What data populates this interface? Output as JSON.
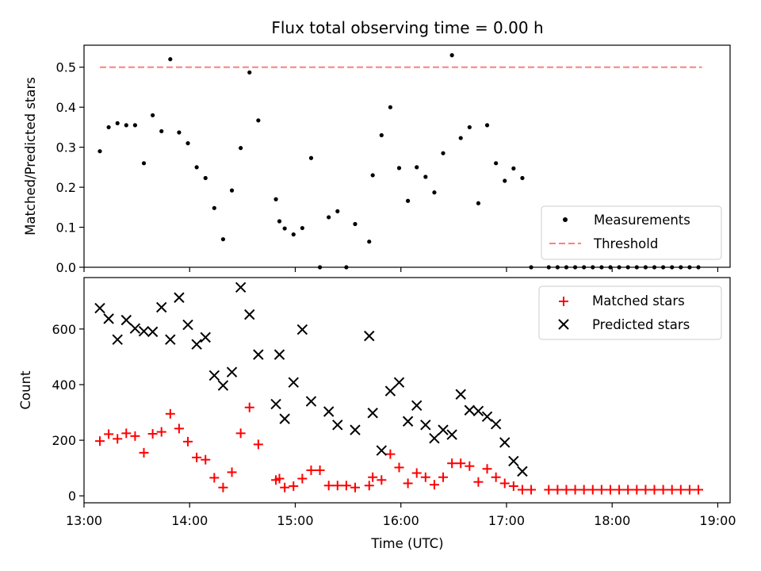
{
  "chart_data": [
    {
      "type": "scatter",
      "title": "Flux total observing time = 0.00 h",
      "xlabel": "",
      "ylabel": "Matched/Predicted stars",
      "ylim": [
        0,
        0.555
      ],
      "xlim": [
        "13:00",
        "19:07"
      ],
      "yticks": [
        "0.0",
        "0.1",
        "0.2",
        "0.3",
        "0.4",
        "0.5"
      ],
      "grid": false,
      "legend_position": "lower-right",
      "legend": [
        "Measurements",
        "Threshold"
      ],
      "series": [
        {
          "name": "Measurements",
          "marker": "dot",
          "color": "#000000",
          "points": [
            [
              "13:09",
              0.29
            ],
            [
              "13:14",
              0.35
            ],
            [
              "13:19",
              0.36
            ],
            [
              "13:24",
              0.355
            ],
            [
              "13:29",
              0.355
            ],
            [
              "13:34",
              0.26
            ],
            [
              "13:39",
              0.38
            ],
            [
              "13:44",
              0.34
            ],
            [
              "13:49",
              0.52
            ],
            [
              "13:54",
              0.337
            ],
            [
              "13:59",
              0.31
            ],
            [
              "14:04",
              0.25
            ],
            [
              "14:09",
              0.223
            ],
            [
              "14:14",
              0.148
            ],
            [
              "14:19",
              0.07
            ],
            [
              "14:24",
              0.192
            ],
            [
              "14:29",
              0.298
            ],
            [
              "14:34",
              0.487
            ],
            [
              "14:39",
              0.367
            ],
            [
              "14:49",
              0.17
            ],
            [
              "14:51",
              0.115
            ],
            [
              "14:54",
              0.097
            ],
            [
              "14:59",
              0.082
            ],
            [
              "15:04",
              0.098
            ],
            [
              "15:09",
              0.273
            ],
            [
              "15:14",
              0.0
            ],
            [
              "15:19",
              0.125
            ],
            [
              "15:24",
              0.14
            ],
            [
              "15:29",
              0.0
            ],
            [
              "15:34",
              0.108
            ],
            [
              "15:42",
              0.064
            ],
            [
              "15:44",
              0.23
            ],
            [
              "15:49",
              0.33
            ],
            [
              "15:54",
              0.4
            ],
            [
              "15:59",
              0.248
            ],
            [
              "16:04",
              0.166
            ],
            [
              "16:09",
              0.25
            ],
            [
              "16:14",
              0.226
            ],
            [
              "16:19",
              0.187
            ],
            [
              "16:24",
              0.285
            ],
            [
              "16:29",
              0.53
            ],
            [
              "16:34",
              0.323
            ],
            [
              "16:39",
              0.35
            ],
            [
              "16:44",
              0.16
            ],
            [
              "16:49",
              0.355
            ],
            [
              "16:54",
              0.26
            ],
            [
              "16:59",
              0.216
            ],
            [
              "17:04",
              0.247
            ],
            [
              "17:09",
              0.223
            ],
            [
              "17:14",
              0.0
            ],
            [
              "17:24",
              0.0
            ],
            [
              "17:29",
              0.0
            ],
            [
              "17:34",
              0.0
            ],
            [
              "17:39",
              0.0
            ],
            [
              "17:44",
              0.0
            ],
            [
              "17:49",
              0.0
            ],
            [
              "17:54",
              0.0
            ],
            [
              "17:59",
              0.0
            ],
            [
              "18:04",
              0.0
            ],
            [
              "18:09",
              0.0
            ],
            [
              "18:14",
              0.0
            ],
            [
              "18:19",
              0.0
            ],
            [
              "18:24",
              0.0
            ],
            [
              "18:29",
              0.0
            ],
            [
              "18:34",
              0.0
            ],
            [
              "18:39",
              0.0
            ],
            [
              "18:44",
              0.0
            ],
            [
              "18:49",
              0.0
            ]
          ]
        },
        {
          "name": "Threshold",
          "marker": "dashed-line",
          "color": "#ff7f7f",
          "points": [
            [
              "13:09",
              0.5
            ],
            [
              "18:51",
              0.5
            ]
          ]
        }
      ]
    },
    {
      "type": "scatter",
      "title": "",
      "xlabel": "Time (UTC)",
      "ylabel": "Count",
      "ylim": [
        -25,
        785
      ],
      "xlim": [
        "13:00",
        "19:07"
      ],
      "xticks": [
        "13:00",
        "14:00",
        "15:00",
        "16:00",
        "17:00",
        "18:00",
        "19:00"
      ],
      "yticks": [
        "0",
        "200",
        "400",
        "600"
      ],
      "grid": false,
      "legend_position": "upper-right",
      "legend": [
        "Matched stars",
        "Predicted stars"
      ],
      "series": [
        {
          "name": "Matched stars",
          "marker": "plus",
          "color": "#ff0000",
          "points": [
            [
              "13:09",
              197
            ],
            [
              "13:14",
              222
            ],
            [
              "13:19",
              205
            ],
            [
              "13:24",
              225
            ],
            [
              "13:29",
              215
            ],
            [
              "13:34",
              155
            ],
            [
              "13:39",
              223
            ],
            [
              "13:44",
              230
            ],
            [
              "13:49",
              295
            ],
            [
              "13:54",
              242
            ],
            [
              "13:59",
              195
            ],
            [
              "14:04",
              138
            ],
            [
              "14:09",
              130
            ],
            [
              "14:14",
              65
            ],
            [
              "14:19",
              30
            ],
            [
              "14:24",
              85
            ],
            [
              "14:29",
              225
            ],
            [
              "14:34",
              318
            ],
            [
              "14:39",
              185
            ],
            [
              "14:49",
              57
            ],
            [
              "14:51",
              62
            ],
            [
              "14:54",
              30
            ],
            [
              "14:59",
              35
            ],
            [
              "15:04",
              62
            ],
            [
              "15:09",
              92
            ],
            [
              "15:14",
              92
            ],
            [
              "15:19",
              37
            ],
            [
              "15:24",
              37
            ],
            [
              "15:29",
              37
            ],
            [
              "15:34",
              30
            ],
            [
              "15:42",
              37
            ],
            [
              "15:44",
              67
            ],
            [
              "15:49",
              57
            ],
            [
              "15:54",
              150
            ],
            [
              "15:59",
              102
            ],
            [
              "16:04",
              45
            ],
            [
              "16:09",
              82
            ],
            [
              "16:14",
              67
            ],
            [
              "16:19",
              40
            ],
            [
              "16:24",
              67
            ],
            [
              "16:29",
              117
            ],
            [
              "16:34",
              117
            ],
            [
              "16:39",
              107
            ],
            [
              "16:44",
              50
            ],
            [
              "16:49",
              97
            ],
            [
              "16:54",
              67
            ],
            [
              "16:59",
              45
            ],
            [
              "17:04",
              35
            ],
            [
              "17:09",
              22
            ],
            [
              "17:14",
              22
            ],
            [
              "17:24",
              22
            ],
            [
              "17:29",
              22
            ],
            [
              "17:34",
              22
            ],
            [
              "17:39",
              22
            ],
            [
              "17:44",
              22
            ],
            [
              "17:49",
              22
            ],
            [
              "17:54",
              22
            ],
            [
              "17:59",
              22
            ],
            [
              "18:04",
              22
            ],
            [
              "18:09",
              22
            ],
            [
              "18:14",
              22
            ],
            [
              "18:19",
              22
            ],
            [
              "18:24",
              22
            ],
            [
              "18:29",
              22
            ],
            [
              "18:34",
              22
            ],
            [
              "18:39",
              22
            ],
            [
              "18:44",
              22
            ],
            [
              "18:49",
              22
            ]
          ]
        },
        {
          "name": "Predicted stars",
          "marker": "x",
          "color": "#000000",
          "points": [
            [
              "13:09",
              675
            ],
            [
              "13:14",
              637
            ],
            [
              "13:19",
              562
            ],
            [
              "13:24",
              632
            ],
            [
              "13:29",
              602
            ],
            [
              "13:34",
              592
            ],
            [
              "13:39",
              590
            ],
            [
              "13:44",
              678
            ],
            [
              "13:49",
              562
            ],
            [
              "13:54",
              713
            ],
            [
              "13:59",
              615
            ],
            [
              "14:04",
              545
            ],
            [
              "14:09",
              570
            ],
            [
              "14:14",
              433
            ],
            [
              "14:19",
              397
            ],
            [
              "14:24",
              445
            ],
            [
              "14:29",
              750
            ],
            [
              "14:34",
              652
            ],
            [
              "14:39",
              508
            ],
            [
              "14:49",
              330
            ],
            [
              "14:51",
              508
            ],
            [
              "14:54",
              277
            ],
            [
              "14:59",
              408
            ],
            [
              "15:04",
              598
            ],
            [
              "15:09",
              340
            ],
            [
              "15:19",
              303
            ],
            [
              "15:24",
              255
            ],
            [
              "15:34",
              237
            ],
            [
              "15:42",
              575
            ],
            [
              "15:44",
              298
            ],
            [
              "15:49",
              163
            ],
            [
              "15:54",
              377
            ],
            [
              "15:59",
              408
            ],
            [
              "16:04",
              268
            ],
            [
              "16:09",
              325
            ],
            [
              "16:14",
              255
            ],
            [
              "16:19",
              207
            ],
            [
              "16:24",
              237
            ],
            [
              "16:29",
              220
            ],
            [
              "16:34",
              365
            ],
            [
              "16:39",
              308
            ],
            [
              "16:44",
              305
            ],
            [
              "16:49",
              285
            ],
            [
              "16:54",
              258
            ],
            [
              "16:59",
              192
            ],
            [
              "17:04",
              125
            ],
            [
              "17:09",
              88
            ]
          ]
        }
      ]
    }
  ]
}
